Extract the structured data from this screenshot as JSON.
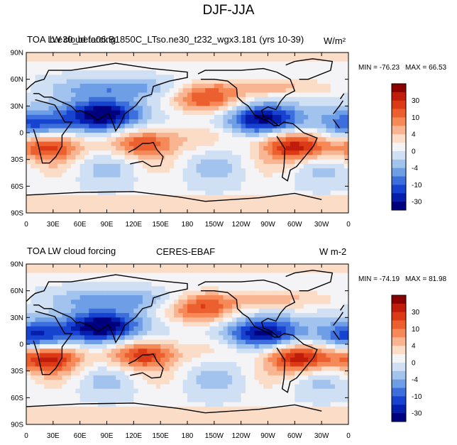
{
  "figure_title": "DJF-JJA",
  "chart_data": [
    {
      "type": "heatmap",
      "subtitle_left": "TOA LW cloud forcing",
      "subtitle_center": "b.e30_beta06.B1850C_LTso.ne30_t232_wgx3.181 (yrs 10-39)",
      "units": "W/m²",
      "min_label": "MIN = -76.23",
      "max_label": "MAX =  66.53",
      "lat_ticks": [
        "90N",
        "60N",
        "30N",
        "0",
        "30S",
        "60S",
        "90S"
      ],
      "lon_ticks": [
        "0",
        "30E",
        "60E",
        "90E",
        "120E",
        "150E",
        "180",
        "150W",
        "120W",
        "90W",
        "60W",
        "30W",
        "0"
      ],
      "colorbar_labels": [
        "30",
        "10",
        "4",
        "0",
        "-4",
        "-10",
        "-30"
      ],
      "colorbar_colors": [
        "#8b0000",
        "#c01c0c",
        "#dc3a16",
        "#ec6030",
        "#f58a58",
        "#f9b592",
        "#fbdcc6",
        "#f4f3f5",
        "#cfe0f4",
        "#a2c3ee",
        "#6e9ee6",
        "#3d6fdc",
        "#1743d0",
        "#051eac",
        "#00007e"
      ],
      "features": [
        {
          "name": "north-pacific-positive",
          "lon": 200,
          "lat": 38,
          "value": 30
        },
        {
          "name": "maritime-continent-positive",
          "lon": 130,
          "lat": -12,
          "value": 30
        },
        {
          "name": "south-america-positive",
          "lon": 300,
          "lat": -15,
          "value": 40
        },
        {
          "name": "southern-africa-positive",
          "lon": 25,
          "lat": -15,
          "value": 35
        },
        {
          "name": "south-asian-monsoon-negative",
          "lon": 85,
          "lat": 20,
          "value": -40
        },
        {
          "name": "central-america-negative",
          "lon": 265,
          "lat": 15,
          "value": -35
        },
        {
          "name": "west-africa-negative",
          "lon": 10,
          "lat": 8,
          "value": -25
        },
        {
          "name": "equatorial-pacific-band-positive",
          "lon": 200,
          "lat": -5,
          "value": 12
        }
      ]
    },
    {
      "type": "heatmap",
      "subtitle_left": "TOA LW cloud forcing",
      "subtitle_center": "CERES-EBAF",
      "units": "W m-2",
      "min_label": "MIN = -74.19",
      "max_label": "MAX =  81.98",
      "lat_ticks": [
        "90N",
        "60N",
        "30N",
        "0",
        "30S",
        "60S",
        "90S"
      ],
      "lon_ticks": [
        "0",
        "30E",
        "60E",
        "90E",
        "120E",
        "150E",
        "180",
        "150W",
        "120W",
        "90W",
        "60W",
        "30W",
        "0"
      ],
      "colorbar_labels": [
        "30",
        "10",
        "4",
        "0",
        "-4",
        "-10",
        "-30"
      ],
      "colorbar_colors": [
        "#8b0000",
        "#c01c0c",
        "#dc3a16",
        "#ec6030",
        "#f58a58",
        "#f9b592",
        "#fbdcc6",
        "#f4f3f5",
        "#cfe0f4",
        "#a2c3ee",
        "#6e9ee6",
        "#3d6fdc",
        "#1743d0",
        "#051eac",
        "#00007e"
      ],
      "features": [
        {
          "name": "north-pacific-positive",
          "lon": 195,
          "lat": 40,
          "value": 30
        },
        {
          "name": "maritime-continent-positive",
          "lon": 130,
          "lat": -12,
          "value": 35
        },
        {
          "name": "south-america-positive",
          "lon": 305,
          "lat": -15,
          "value": 40
        },
        {
          "name": "southern-africa-positive",
          "lon": 25,
          "lat": -15,
          "value": 40
        },
        {
          "name": "south-asian-monsoon-negative",
          "lon": 85,
          "lat": 20,
          "value": -40
        },
        {
          "name": "central-america-negative",
          "lon": 265,
          "lat": 12,
          "value": -35
        },
        {
          "name": "west-africa-negative",
          "lon": 10,
          "lat": 8,
          "value": -30
        },
        {
          "name": "equatorial-pacific-band-positive",
          "lon": 210,
          "lat": -5,
          "value": 10
        }
      ]
    }
  ]
}
